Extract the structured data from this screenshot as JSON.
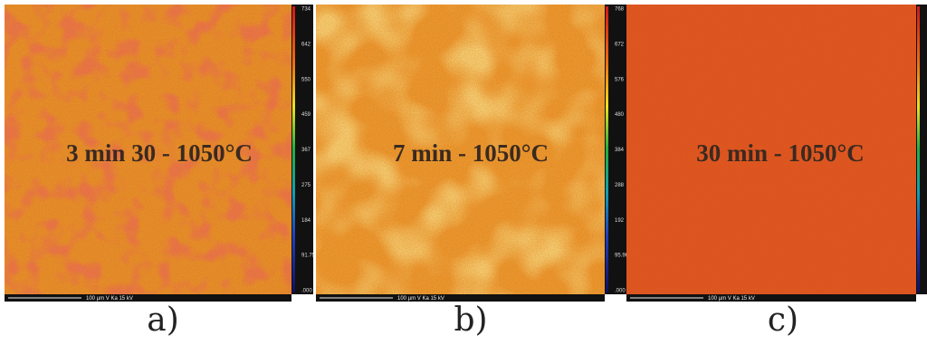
{
  "panels": [
    {
      "overlay": "3 min 30 - 1050°C",
      "caption": "a)",
      "scale_text": "100 µm V Ka 15 kV",
      "colorbar_labels": [
        "734",
        "642",
        "550",
        "459",
        "367",
        "275",
        "184",
        "91.75",
        ".000"
      ]
    },
    {
      "overlay": "7 min - 1050°C",
      "caption": "b)",
      "scale_text": "100 µm V Ka 15 kV",
      "colorbar_labels": [
        "768",
        "672",
        "576",
        "480",
        "384",
        "288",
        "192",
        "95.96",
        ".000"
      ]
    },
    {
      "overlay": "30 min - 1050°C",
      "caption": "c)",
      "scale_text": "100 µm V Ka 15 kV",
      "colorbar_labels": []
    }
  ]
}
